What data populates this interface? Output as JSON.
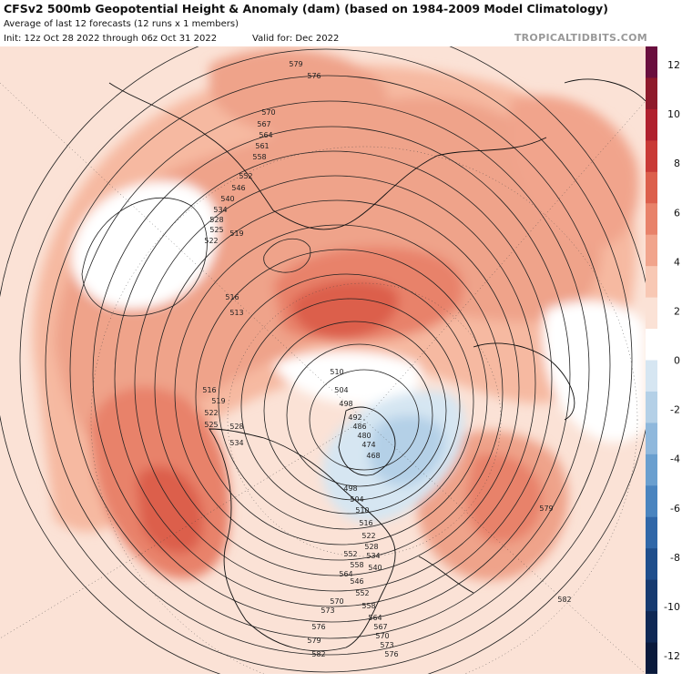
{
  "header": {
    "title": "CFSv2 500mb Geopotential Height & Anomaly (dam) (based on 1984-2009 Model Climatology)",
    "subtitle": "Average of last 12 forecasts (12 runs x 1 members)",
    "init": "Init: 12z Oct 28 2022 through 06z Oct 31 2022",
    "valid": "Valid for: Dec 2022",
    "brand": "TROPICALTIDBITS.COM"
  },
  "colorbar": {
    "ticks": [
      "12",
      "10",
      "8",
      "6",
      "4",
      "2",
      "0",
      "-2",
      "-4",
      "-6",
      "-8",
      "-10",
      "-12"
    ],
    "colors": [
      "#6a0f3e",
      "#8e1a2b",
      "#b0202e",
      "#c93a36",
      "#dc5f4c",
      "#e8826a",
      "#f1a48c",
      "#f8c8b4",
      "#fbe2d6",
      "#ffffff",
      "#d6e6f2",
      "#b4d0e7",
      "#8fb8dc",
      "#6a9fcf",
      "#4a84bf",
      "#3067a8",
      "#1f4e8c",
      "#163a70",
      "#0f2855",
      "#0a1a3c"
    ]
  },
  "contour_labels": [
    "579",
    "576",
    "570",
    "567",
    "564",
    "561",
    "558",
    "552",
    "546",
    "540",
    "534",
    "528",
    "525",
    "522",
    "519",
    "516",
    "513",
    "510",
    "504",
    "498",
    "492",
    "486",
    "480",
    "474",
    "468",
    "498",
    "504",
    "510",
    "516",
    "522",
    "528",
    "534",
    "540",
    "546",
    "552",
    "558",
    "564",
    "567",
    "570",
    "573",
    "576",
    "579",
    "582",
    "516",
    "519",
    "522",
    "525",
    "528",
    "534",
    "552",
    "558",
    "564",
    "570",
    "573",
    "576",
    "579",
    "582"
  ]
}
